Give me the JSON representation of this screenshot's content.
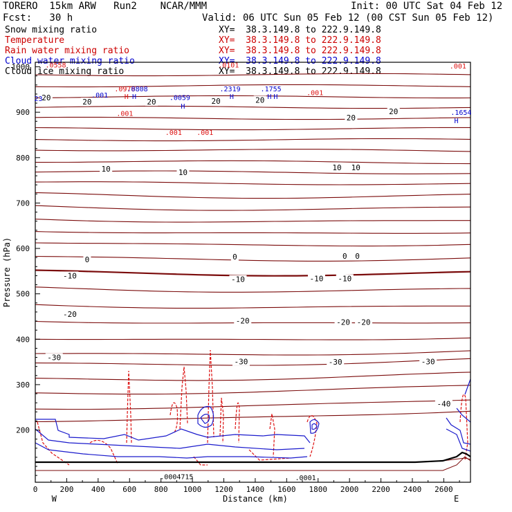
{
  "header": {
    "model": "TORERO  15km ARW   Run2    NCAR/MMM",
    "init": "Init: 00 UTC Sat 04 Feb 12",
    "fcst": "Fcst:   30 h",
    "valid": "Valid: 06 UTC Sun 05 Feb 12 (00 CST Sun 05 Feb 12)"
  },
  "legend": [
    {
      "label": "Snow mixing ratio",
      "xy": "XY=  38.3.149.8 to 222.9.149.8",
      "color": "#000000"
    },
    {
      "label": "Temperature",
      "xy": "XY=  38.3.149.8 to 222.9.149.8",
      "color": "#cc0000"
    },
    {
      "label": "Rain water mixing ratio",
      "xy": "XY=  38.3.149.8 to 222.9.149.8",
      "color": "#cc0000"
    },
    {
      "label": "Cloud water mixing ratio",
      "xy": "XY=  38.3.149.8 to 222.9.149.8",
      "color": "#0000cc"
    },
    {
      "label": "Cloud ice mixing ratio",
      "xy": "XY=  38.3.149.8 to 222.9.149.8",
      "color": "#000000"
    }
  ],
  "colors": {
    "temperature": "#7a0a0a",
    "rain": "#dd1111",
    "cloud_water": "#1a1acc",
    "ground": "#000000"
  },
  "chart_data": {
    "type": "contour",
    "xlabel": "Distance (km)",
    "ylabel": "Pressure (hPa)",
    "xlim": [
      0,
      2770
    ],
    "ylim": [
      1010,
      85
    ],
    "x_ticks": [
      0,
      200,
      400,
      600,
      800,
      1000,
      1200,
      1400,
      1600,
      1800,
      2000,
      2200,
      2400,
      2600
    ],
    "y_ticks": [
      200,
      300,
      400,
      500,
      600,
      700,
      800,
      900,
      1000
    ],
    "x_endpoint_labels": {
      "left": "W",
      "right": "E"
    },
    "temperature_labels": [
      {
        "text": "-40",
        "x": 2600,
        "p": 258
      },
      {
        "text": "-30",
        "x": 120,
        "p": 360
      },
      {
        "text": "-30",
        "x": 1310,
        "p": 351
      },
      {
        "text": "-30",
        "x": 1910,
        "p": 350
      },
      {
        "text": "-30",
        "x": 2500,
        "p": 351
      },
      {
        "text": "-20",
        "x": 220,
        "p": 455
      },
      {
        "text": "-20",
        "x": 1320,
        "p": 441
      },
      {
        "text": "-20",
        "x": 1960,
        "p": 438
      },
      {
        "text": "-20",
        "x": 2090,
        "p": 438
      },
      {
        "text": "-10",
        "x": 220,
        "p": 540
      },
      {
        "text": "-10",
        "x": 1290,
        "p": 532
      },
      {
        "text": "-10",
        "x": 1790,
        "p": 534
      },
      {
        "text": "-10",
        "x": 1970,
        "p": 534
      },
      {
        "text": "0",
        "x": 330,
        "p": 576
      },
      {
        "text": "0",
        "x": 1270,
        "p": 582
      },
      {
        "text": "0",
        "x": 1970,
        "p": 583
      },
      {
        "text": "0",
        "x": 2050,
        "p": 583
      },
      {
        "text": "10",
        "x": 450,
        "p": 775
      },
      {
        "text": "10",
        "x": 940,
        "p": 768
      },
      {
        "text": "10",
        "x": 1920,
        "p": 778
      },
      {
        "text": "10",
        "x": 2040,
        "p": 778
      },
      {
        "text": "20",
        "x": 2010,
        "p": 888
      },
      {
        "text": "20",
        "x": 2280,
        "p": 902
      },
      {
        "text": "20",
        "x": 330,
        "p": 923
      },
      {
        "text": "20",
        "x": 740,
        "p": 923
      },
      {
        "text": "20",
        "x": 1150,
        "p": 925
      },
      {
        "text": "20",
        "x": 1430,
        "p": 927
      },
      {
        "text": "20",
        "x": 70,
        "p": 932
      }
    ],
    "hydrometeor_labels": [
      {
        "text": ".0004715",
        "x": 900,
        "p": 98,
        "color": "#000000"
      },
      {
        "text": ".0001",
        "x": 1720,
        "p": 96,
        "color": "#000000"
      },
      {
        "text": ".001",
        "x": 880,
        "p": 856,
        "color": "#dd1111"
      },
      {
        "text": ".001",
        "x": 1080,
        "p": 856,
        "color": "#dd1111"
      },
      {
        "text": ".001",
        "x": 570,
        "p": 898,
        "color": "#dd1111"
      },
      {
        "text": ".001",
        "x": 410,
        "p": 938,
        "color": "#0000cc"
      },
      {
        "text": ".001",
        "x": 1780,
        "p": 944,
        "color": "#dd1111"
      },
      {
        "text": ".001",
        "x": 2690,
        "p": 1002,
        "color": "#dd1111"
      },
      {
        "text": ".0059",
        "x": 920,
        "p": 933,
        "color": "#0000cc"
      },
      {
        "text": ".0978",
        "x": 570,
        "p": 952,
        "color": "#dd1111"
      },
      {
        "text": ".0808",
        "x": 650,
        "p": 952,
        "color": "#0000cc"
      },
      {
        "text": ".2319",
        "x": 1240,
        "p": 952,
        "color": "#0000cc"
      },
      {
        "text": ".1755",
        "x": 1500,
        "p": 952,
        "color": "#0000cc"
      },
      {
        "text": ".1654",
        "x": 2710,
        "p": 900,
        "color": "#0000cc"
      },
      {
        "text": ".0558",
        "x": 130,
        "p": 1005,
        "color": "#dd1111"
      },
      {
        "text": ".0101",
        "x": 1230,
        "p": 1005,
        "color": "#dd1111"
      },
      {
        "text": "23",
        "x": 20,
        "p": 931,
        "color": "#0000cc"
      },
      {
        "text": "H",
        "x": 940,
        "p": 914,
        "color": "#0000cc"
      },
      {
        "text": "H",
        "x": 580,
        "p": 935,
        "color": "#dd1111"
      },
      {
        "text": "H",
        "x": 630,
        "p": 935,
        "color": "#0000cc"
      },
      {
        "text": "H",
        "x": 1250,
        "p": 935,
        "color": "#0000cc"
      },
      {
        "text": "H",
        "x": 1490,
        "p": 935,
        "color": "#0000cc"
      },
      {
        "text": "H",
        "x": 1530,
        "p": 935,
        "color": "#0000cc"
      },
      {
        "text": "H",
        "x": 2680,
        "p": 882,
        "color": "#0000cc"
      }
    ]
  }
}
